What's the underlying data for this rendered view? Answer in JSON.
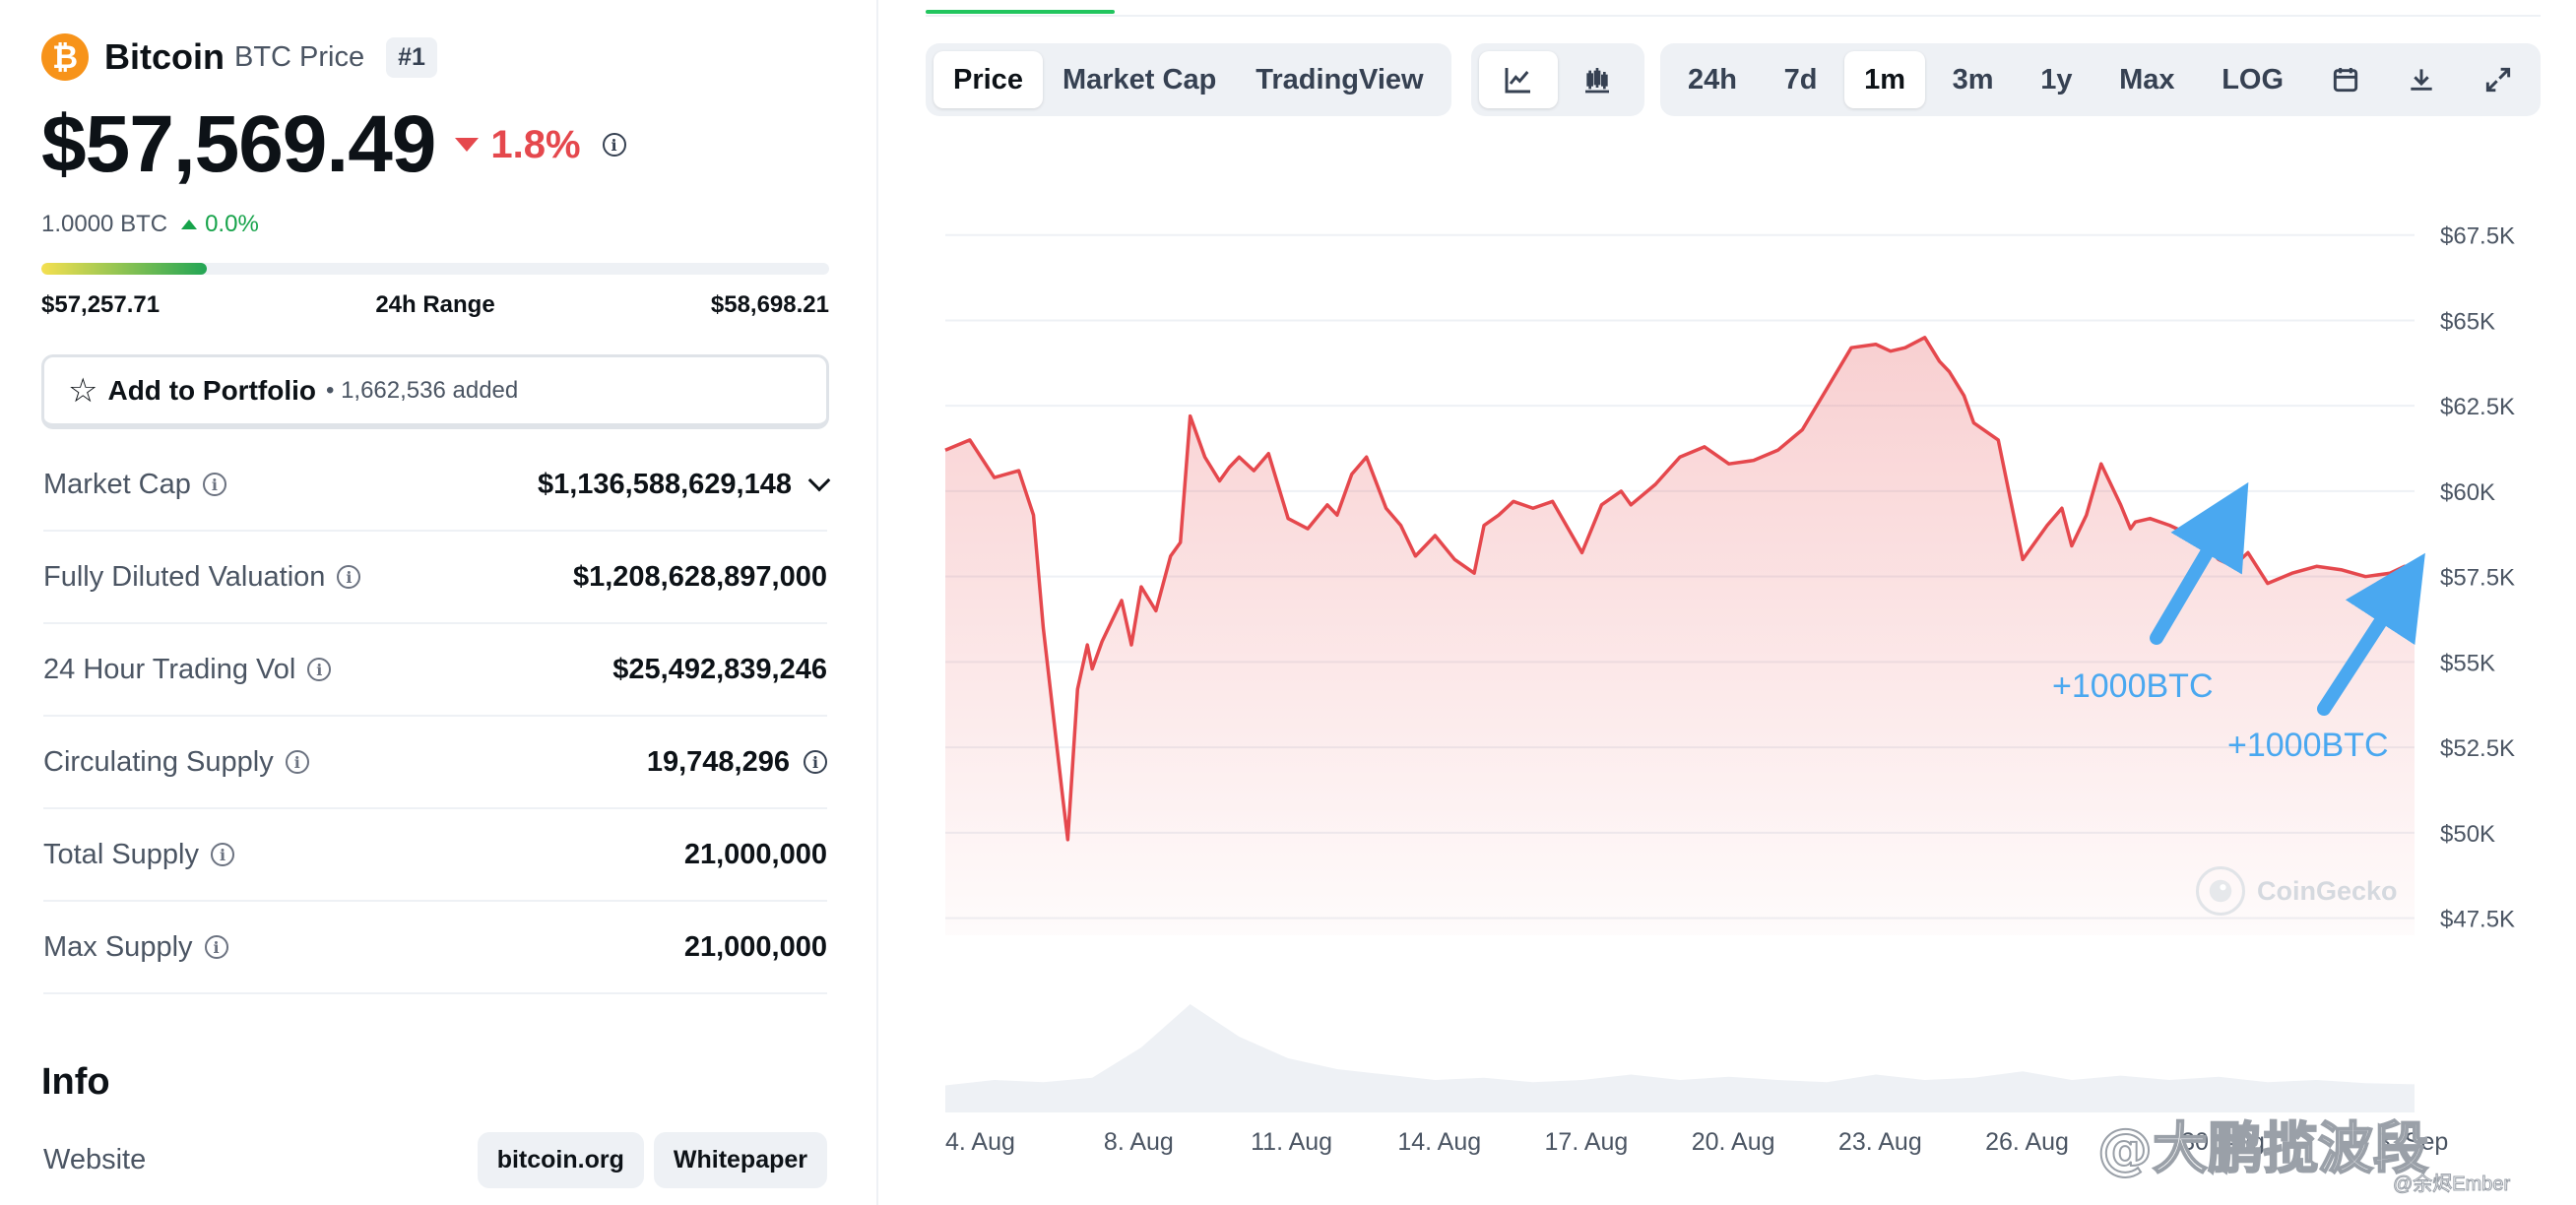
{
  "coin": {
    "logo_glyph": "₿",
    "name": "Bitcoin",
    "symbol_label": "BTC Price",
    "rank": "#1"
  },
  "price": {
    "value": "$57,569.49",
    "change": "1.8%",
    "change_direction": "down"
  },
  "btc_ratio": {
    "value": "1.0000 BTC",
    "change": "0.0%"
  },
  "range_24h": {
    "low": "$57,257.71",
    "label": "24h Range",
    "high": "$58,698.21",
    "position": 0.21
  },
  "portfolio": {
    "label": "Add to Portfolio",
    "count": "• 1,662,536 added"
  },
  "stats": [
    {
      "label": "Market Cap",
      "value": "$1,136,588,629,148"
    },
    {
      "label": "Fully Diluted Valuation",
      "value": "$1,208,628,897,000"
    },
    {
      "label": "24 Hour Trading Vol",
      "value": "$25,492,839,246"
    },
    {
      "label": "Circulating Supply",
      "value": "19,748,296"
    },
    {
      "label": "Total Supply",
      "value": "21,000,000"
    },
    {
      "label": "Max Supply",
      "value": "21,000,000"
    }
  ],
  "info": {
    "title": "Info",
    "website_label": "Website",
    "links": [
      "bitcoin.org",
      "Whitepaper"
    ]
  },
  "chart_tabs": {
    "items": [
      "Price",
      "Market Cap",
      "TradingView"
    ],
    "active": "Price"
  },
  "chart_types": {
    "items": [
      "line-chart-icon",
      "candlestick-icon"
    ],
    "active": "line-chart-icon"
  },
  "ranges": {
    "items": [
      "24h",
      "7d",
      "1m",
      "3m",
      "1y",
      "Max",
      "LOG"
    ],
    "active": "1m"
  },
  "tools": [
    "calendar-icon",
    "download-icon",
    "expand-icon"
  ],
  "annotations": [
    "+1000BTC",
    "+1000BTC"
  ],
  "watermark": "CoinGecko",
  "social_watermark": {
    "main": "@大鹏揽波段",
    "sub": "@余烬Ember"
  },
  "colors": {
    "line": "#e5484d",
    "accent": "#22c55e",
    "annotation": "#4aa8f0"
  },
  "chart_data": {
    "type": "line",
    "title": "",
    "xlabel": "",
    "ylabel": "",
    "y_tick_labels": [
      "$67.5K",
      "$65K",
      "$62.5K",
      "$60K",
      "$57.5K",
      "$55K",
      "$52.5K",
      "$50K",
      "$47.5K"
    ],
    "y_ticks": [
      67500,
      65000,
      62500,
      60000,
      57500,
      55000,
      52500,
      50000,
      47500
    ],
    "ylim": [
      47000,
      68500
    ],
    "x_tick_labels": [
      "4. Aug",
      "8. Aug",
      "11. Aug",
      "14. Aug",
      "17. Aug",
      "20. Aug",
      "23. Aug",
      "26. Aug",
      "30. Aug",
      "3. Sep"
    ],
    "x_ticks": [
      0,
      4,
      7,
      10,
      13,
      16,
      19,
      22,
      26,
      30
    ],
    "xlim": [
      0,
      30
    ],
    "grid": true,
    "series": [
      {
        "x": [
          0,
          0.5,
          1,
          1.5,
          1.8,
          2,
          2.2,
          2.4,
          2.5,
          2.7,
          2.9,
          3,
          3.2,
          3.4,
          3.6,
          3.8,
          4,
          4.3,
          4.6,
          4.8,
          5,
          5.3,
          5.6,
          5.8,
          6,
          6.3,
          6.6,
          7,
          7.4,
          7.8,
          8,
          8.3,
          8.6,
          9,
          9.3,
          9.6,
          10,
          10.4,
          10.8,
          11,
          11.3,
          11.6,
          12,
          12.4,
          12.8,
          13,
          13.4,
          13.8,
          14,
          14.5,
          15,
          15.5,
          16,
          16.5,
          17,
          17.5,
          18,
          18.5,
          19,
          19.3,
          19.6,
          20,
          20.3,
          20.5,
          20.8,
          21,
          21.5,
          22,
          22.5,
          22.8,
          23,
          23.3,
          23.6,
          24,
          24.2,
          24.3,
          24.6,
          25,
          25.3,
          25.6,
          26,
          26.3,
          26.6,
          27,
          27.5,
          28,
          28.5,
          29,
          29.5,
          29.8,
          30
        ],
        "y": [
          61200,
          61500,
          60400,
          60600,
          59300,
          56000,
          53500,
          51000,
          49800,
          54200,
          55500,
          54800,
          55600,
          56200,
          56800,
          55500,
          57200,
          56500,
          58100,
          58500,
          62200,
          61000,
          60300,
          60700,
          61000,
          60600,
          61100,
          59200,
          58900,
          59600,
          59300,
          60500,
          61000,
          59500,
          59000,
          58100,
          58700,
          58000,
          57600,
          59000,
          59300,
          59700,
          59500,
          59700,
          58700,
          58200,
          59600,
          60000,
          59600,
          60200,
          61000,
          61300,
          60800,
          60900,
          61200,
          61800,
          63000,
          64200,
          64300,
          64100,
          64200,
          64500,
          63800,
          63500,
          62800,
          62000,
          61500,
          58000,
          59000,
          59500,
          58400,
          59300,
          60800,
          59600,
          58900,
          59100,
          59200,
          59000,
          58800,
          58600,
          58000,
          57800,
          58200,
          57300,
          57600,
          57800,
          57700,
          57500,
          57600,
          57800,
          57600
        ]
      }
    ]
  }
}
